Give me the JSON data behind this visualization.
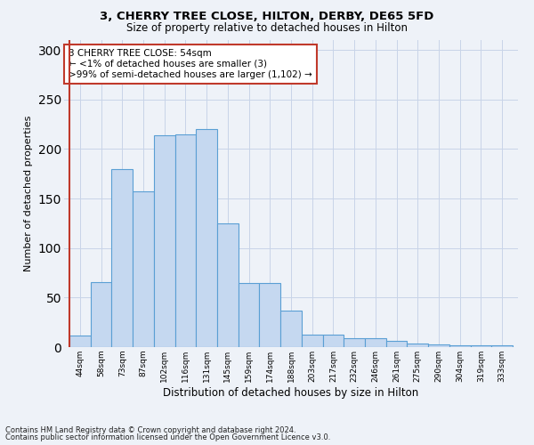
{
  "title1": "3, CHERRY TREE CLOSE, HILTON, DERBY, DE65 5FD",
  "title2": "Size of property relative to detached houses in Hilton",
  "xlabel": "Distribution of detached houses by size in Hilton",
  "ylabel": "Number of detached properties",
  "categories": [
    "44sqm",
    "58sqm",
    "73sqm",
    "87sqm",
    "102sqm",
    "116sqm",
    "131sqm",
    "145sqm",
    "159sqm",
    "174sqm",
    "188sqm",
    "203sqm",
    "217sqm",
    "232sqm",
    "246sqm",
    "261sqm",
    "275sqm",
    "290sqm",
    "304sqm",
    "319sqm",
    "333sqm"
  ],
  "values": [
    12,
    66,
    180,
    157,
    214,
    215,
    220,
    125,
    65,
    65,
    37,
    13,
    13,
    9,
    9,
    6,
    4,
    3,
    2,
    2,
    2
  ],
  "bar_color": "#c5d8f0",
  "bar_edge_color": "#5a9fd4",
  "vline_color": "#c0392b",
  "annotation_text": "3 CHERRY TREE CLOSE: 54sqm\n← <1% of detached houses are smaller (3)\n>99% of semi-detached houses are larger (1,102) →",
  "annotation_box_color": "white",
  "annotation_box_edge_color": "#c0392b",
  "footnote1": "Contains HM Land Registry data © Crown copyright and database right 2024.",
  "footnote2": "Contains public sector information licensed under the Open Government Licence v3.0.",
  "ylim": [
    0,
    310
  ],
  "grid_color": "#c8d4e8",
  "background_color": "#eef2f8"
}
